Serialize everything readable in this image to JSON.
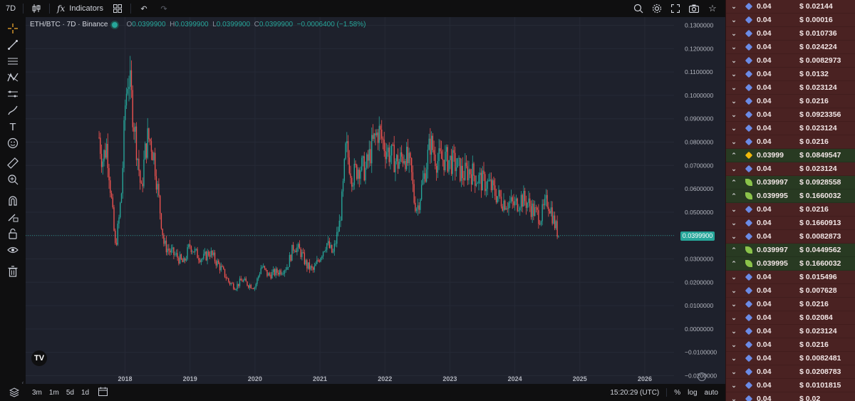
{
  "topbar": {
    "interval": "7D",
    "indicators_label": "Indicators",
    "indicators_glyph": "fx"
  },
  "legend": {
    "symbol": "ETH/BTC · 7D · Binance",
    "open_label": "O",
    "open": "0.0399900",
    "high_label": "H",
    "high": "0.0399900",
    "low_label": "L",
    "low": "0.0399900",
    "close_label": "C",
    "close": "0.0399900",
    "change": "−0.0006400 (−1.58%)"
  },
  "chart_data": {
    "type": "candlestick",
    "current_price_label": "0.0399900",
    "y_ticks": [
      "0.1300000",
      "0.1200000",
      "0.1100000",
      "0.1000000",
      "0.0900000",
      "0.0800000",
      "0.0700000",
      "0.0600000",
      "0.0500000",
      "0.0400000",
      "0.0300000",
      "0.0200000",
      "0.0100000",
      "0.0000000",
      "−0.0100000",
      "−0.0200000"
    ],
    "y_tick_values": [
      0.13,
      0.12,
      0.11,
      0.1,
      0.09,
      0.08,
      0.07,
      0.06,
      0.05,
      0.04,
      0.03,
      0.02,
      0.01,
      0.0,
      -0.01,
      -0.02
    ],
    "ylim": [
      -0.0235,
      0.1335
    ],
    "x_ticks": [
      "2018",
      "2019",
      "2020",
      "2021",
      "2022",
      "2023",
      "2024",
      "2025",
      "2026"
    ],
    "x_tick_years": [
      2018,
      2019,
      2020,
      2021,
      2022,
      2023,
      2024,
      2025,
      2026
    ],
    "xlim": [
      2016.47,
      2026.45
    ],
    "last_price": 0.03999,
    "up_color": "#26a69a",
    "down_color": "#ef5350",
    "close_series": [
      {
        "t": 2017.6,
        "v": 0.082
      },
      {
        "t": 2017.65,
        "v": 0.072
      },
      {
        "t": 2017.72,
        "v": 0.079
      },
      {
        "t": 2017.8,
        "v": 0.052
      },
      {
        "t": 2017.85,
        "v": 0.035
      },
      {
        "t": 2017.9,
        "v": 0.045
      },
      {
        "t": 2017.95,
        "v": 0.06
      },
      {
        "t": 2018.0,
        "v": 0.095
      },
      {
        "t": 2018.05,
        "v": 0.11
      },
      {
        "t": 2018.1,
        "v": 0.098
      },
      {
        "t": 2018.15,
        "v": 0.085
      },
      {
        "t": 2018.2,
        "v": 0.072
      },
      {
        "t": 2018.25,
        "v": 0.058
      },
      {
        "t": 2018.3,
        "v": 0.074
      },
      {
        "t": 2018.35,
        "v": 0.082
      },
      {
        "t": 2018.4,
        "v": 0.08
      },
      {
        "t": 2018.45,
        "v": 0.073
      },
      {
        "t": 2018.5,
        "v": 0.06
      },
      {
        "t": 2018.55,
        "v": 0.048
      },
      {
        "t": 2018.6,
        "v": 0.036
      },
      {
        "t": 2018.7,
        "v": 0.033
      },
      {
        "t": 2018.8,
        "v": 0.031
      },
      {
        "t": 2018.9,
        "v": 0.028
      },
      {
        "t": 2019.0,
        "v": 0.036
      },
      {
        "t": 2019.1,
        "v": 0.032
      },
      {
        "t": 2019.2,
        "v": 0.03
      },
      {
        "t": 2019.3,
        "v": 0.033
      },
      {
        "t": 2019.4,
        "v": 0.029
      },
      {
        "t": 2019.5,
        "v": 0.025
      },
      {
        "t": 2019.6,
        "v": 0.02
      },
      {
        "t": 2019.7,
        "v": 0.018
      },
      {
        "t": 2019.8,
        "v": 0.021
      },
      {
        "t": 2019.9,
        "v": 0.019
      },
      {
        "t": 2020.0,
        "v": 0.018
      },
      {
        "t": 2020.1,
        "v": 0.027
      },
      {
        "t": 2020.2,
        "v": 0.023
      },
      {
        "t": 2020.3,
        "v": 0.024
      },
      {
        "t": 2020.4,
        "v": 0.025
      },
      {
        "t": 2020.5,
        "v": 0.027
      },
      {
        "t": 2020.6,
        "v": 0.036
      },
      {
        "t": 2020.7,
        "v": 0.033
      },
      {
        "t": 2020.8,
        "v": 0.027
      },
      {
        "t": 2020.9,
        "v": 0.025
      },
      {
        "t": 2021.0,
        "v": 0.031
      },
      {
        "t": 2021.1,
        "v": 0.037
      },
      {
        "t": 2021.2,
        "v": 0.032
      },
      {
        "t": 2021.3,
        "v": 0.045
      },
      {
        "t": 2021.35,
        "v": 0.058
      },
      {
        "t": 2021.4,
        "v": 0.078
      },
      {
        "t": 2021.5,
        "v": 0.065
      },
      {
        "t": 2021.6,
        "v": 0.07
      },
      {
        "t": 2021.7,
        "v": 0.068
      },
      {
        "t": 2021.8,
        "v": 0.078
      },
      {
        "t": 2021.9,
        "v": 0.085
      },
      {
        "t": 2022.0,
        "v": 0.078
      },
      {
        "t": 2022.1,
        "v": 0.074
      },
      {
        "t": 2022.2,
        "v": 0.071
      },
      {
        "t": 2022.3,
        "v": 0.075
      },
      {
        "t": 2022.4,
        "v": 0.068
      },
      {
        "t": 2022.45,
        "v": 0.055
      },
      {
        "t": 2022.5,
        "v": 0.052
      },
      {
        "t": 2022.6,
        "v": 0.065
      },
      {
        "t": 2022.7,
        "v": 0.08
      },
      {
        "t": 2022.8,
        "v": 0.072
      },
      {
        "t": 2022.9,
        "v": 0.073
      },
      {
        "t": 2023.0,
        "v": 0.072
      },
      {
        "t": 2023.1,
        "v": 0.07
      },
      {
        "t": 2023.2,
        "v": 0.066
      },
      {
        "t": 2023.3,
        "v": 0.068
      },
      {
        "t": 2023.4,
        "v": 0.065
      },
      {
        "t": 2023.5,
        "v": 0.063
      },
      {
        "t": 2023.6,
        "v": 0.062
      },
      {
        "t": 2023.7,
        "v": 0.058
      },
      {
        "t": 2023.8,
        "v": 0.055
      },
      {
        "t": 2023.9,
        "v": 0.054
      },
      {
        "t": 2024.0,
        "v": 0.053
      },
      {
        "t": 2024.1,
        "v": 0.056
      },
      {
        "t": 2024.2,
        "v": 0.054
      },
      {
        "t": 2024.3,
        "v": 0.05
      },
      {
        "t": 2024.4,
        "v": 0.048
      },
      {
        "t": 2024.5,
        "v": 0.055
      },
      {
        "t": 2024.55,
        "v": 0.052
      },
      {
        "t": 2024.6,
        "v": 0.046
      },
      {
        "t": 2024.65,
        "v": 0.042
      },
      {
        "t": 2024.68,
        "v": 0.03999
      }
    ]
  },
  "bottombar": {
    "ranges": [
      "3m",
      "1m",
      "5d",
      "1d"
    ],
    "time": "15:20:29 (UTC)",
    "percent": "%",
    "log": "log",
    "auto": "auto"
  },
  "trades": [
    {
      "dir": "down",
      "coin": "eth",
      "amount": "0.04",
      "usd": "$ 0.02144"
    },
    {
      "dir": "down",
      "coin": "eth",
      "amount": "0.04",
      "usd": "$ 0.00016"
    },
    {
      "dir": "down",
      "coin": "eth",
      "amount": "0.04",
      "usd": "$ 0.010736"
    },
    {
      "dir": "down",
      "coin": "eth",
      "amount": "0.04",
      "usd": "$ 0.024224"
    },
    {
      "dir": "down",
      "coin": "eth",
      "amount": "0.04",
      "usd": "$ 0.0082973"
    },
    {
      "dir": "down",
      "coin": "eth",
      "amount": "0.04",
      "usd": "$ 0.0132"
    },
    {
      "dir": "down",
      "coin": "eth",
      "amount": "0.04",
      "usd": "$ 0.023124"
    },
    {
      "dir": "down",
      "coin": "eth",
      "amount": "0.04",
      "usd": "$ 0.0216"
    },
    {
      "dir": "down",
      "coin": "eth",
      "amount": "0.04",
      "usd": "$ 0.0923356"
    },
    {
      "dir": "down",
      "coin": "eth",
      "amount": "0.04",
      "usd": "$ 0.023124"
    },
    {
      "dir": "down",
      "coin": "eth",
      "amount": "0.04",
      "usd": "$ 0.0216"
    },
    {
      "dir": "up",
      "coin": "bnb",
      "amount": "0.03999",
      "usd": "$ 0.0849547"
    },
    {
      "dir": "down",
      "coin": "eth",
      "amount": "0.04",
      "usd": "$ 0.023124"
    },
    {
      "dir": "up",
      "coin": "leaf",
      "amount": "0.039997",
      "usd": "$ 0.0928558"
    },
    {
      "dir": "up",
      "coin": "leaf",
      "amount": "0.039995",
      "usd": "$ 0.1660032"
    },
    {
      "dir": "down",
      "coin": "eth",
      "amount": "0.04",
      "usd": "$ 0.0216"
    },
    {
      "dir": "down",
      "coin": "eth",
      "amount": "0.04",
      "usd": "$ 0.1660913"
    },
    {
      "dir": "down",
      "coin": "eth",
      "amount": "0.04",
      "usd": "$ 0.0082873"
    },
    {
      "dir": "up",
      "coin": "leaf",
      "amount": "0.039997",
      "usd": "$ 0.0449562"
    },
    {
      "dir": "up",
      "coin": "leaf",
      "amount": "0.039995",
      "usd": "$ 0.1660032"
    },
    {
      "dir": "down",
      "coin": "eth",
      "amount": "0.04",
      "usd": "$ 0.015496"
    },
    {
      "dir": "down",
      "coin": "eth",
      "amount": "0.04",
      "usd": "$ 0.007628"
    },
    {
      "dir": "down",
      "coin": "eth",
      "amount": "0.04",
      "usd": "$ 0.0216"
    },
    {
      "dir": "down",
      "coin": "eth",
      "amount": "0.04",
      "usd": "$ 0.02084"
    },
    {
      "dir": "down",
      "coin": "eth",
      "amount": "0.04",
      "usd": "$ 0.023124"
    },
    {
      "dir": "down",
      "coin": "eth",
      "amount": "0.04",
      "usd": "$ 0.0216"
    },
    {
      "dir": "down",
      "coin": "eth",
      "amount": "0.04",
      "usd": "$ 0.0082481"
    },
    {
      "dir": "down",
      "coin": "eth",
      "amount": "0.04",
      "usd": "$ 0.0208783"
    },
    {
      "dir": "down",
      "coin": "eth",
      "amount": "0.04",
      "usd": "$ 0.0101815"
    },
    {
      "dir": "down",
      "coin": "eth",
      "amount": "0.04",
      "usd": "$ 0.02"
    }
  ]
}
